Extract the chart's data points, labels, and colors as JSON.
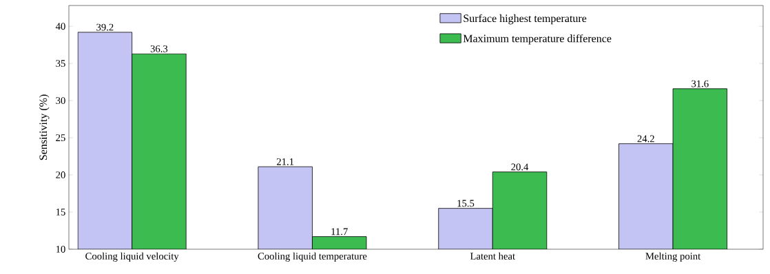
{
  "chart_data": {
    "type": "bar",
    "ylabel": "Sensitivity (%)",
    "categories": [
      "Cooling liquid velocity",
      "Cooling liquid temperature",
      "Latent heat",
      "Melting point"
    ],
    "series": [
      {
        "name": "Surface highest temperature",
        "color": "#c4c4f4",
        "values": [
          39.2,
          21.1,
          15.5,
          24.2
        ]
      },
      {
        "name": "Maximum temperature difference",
        "color": "#3cbc50",
        "values": [
          36.3,
          11.7,
          20.4,
          31.6
        ]
      }
    ],
    "ylim": [
      10,
      42.8
    ],
    "yticks": [
      10,
      15,
      20,
      25,
      30,
      35,
      40
    ],
    "data_labels": true,
    "legend": "top right",
    "grid": false
  }
}
